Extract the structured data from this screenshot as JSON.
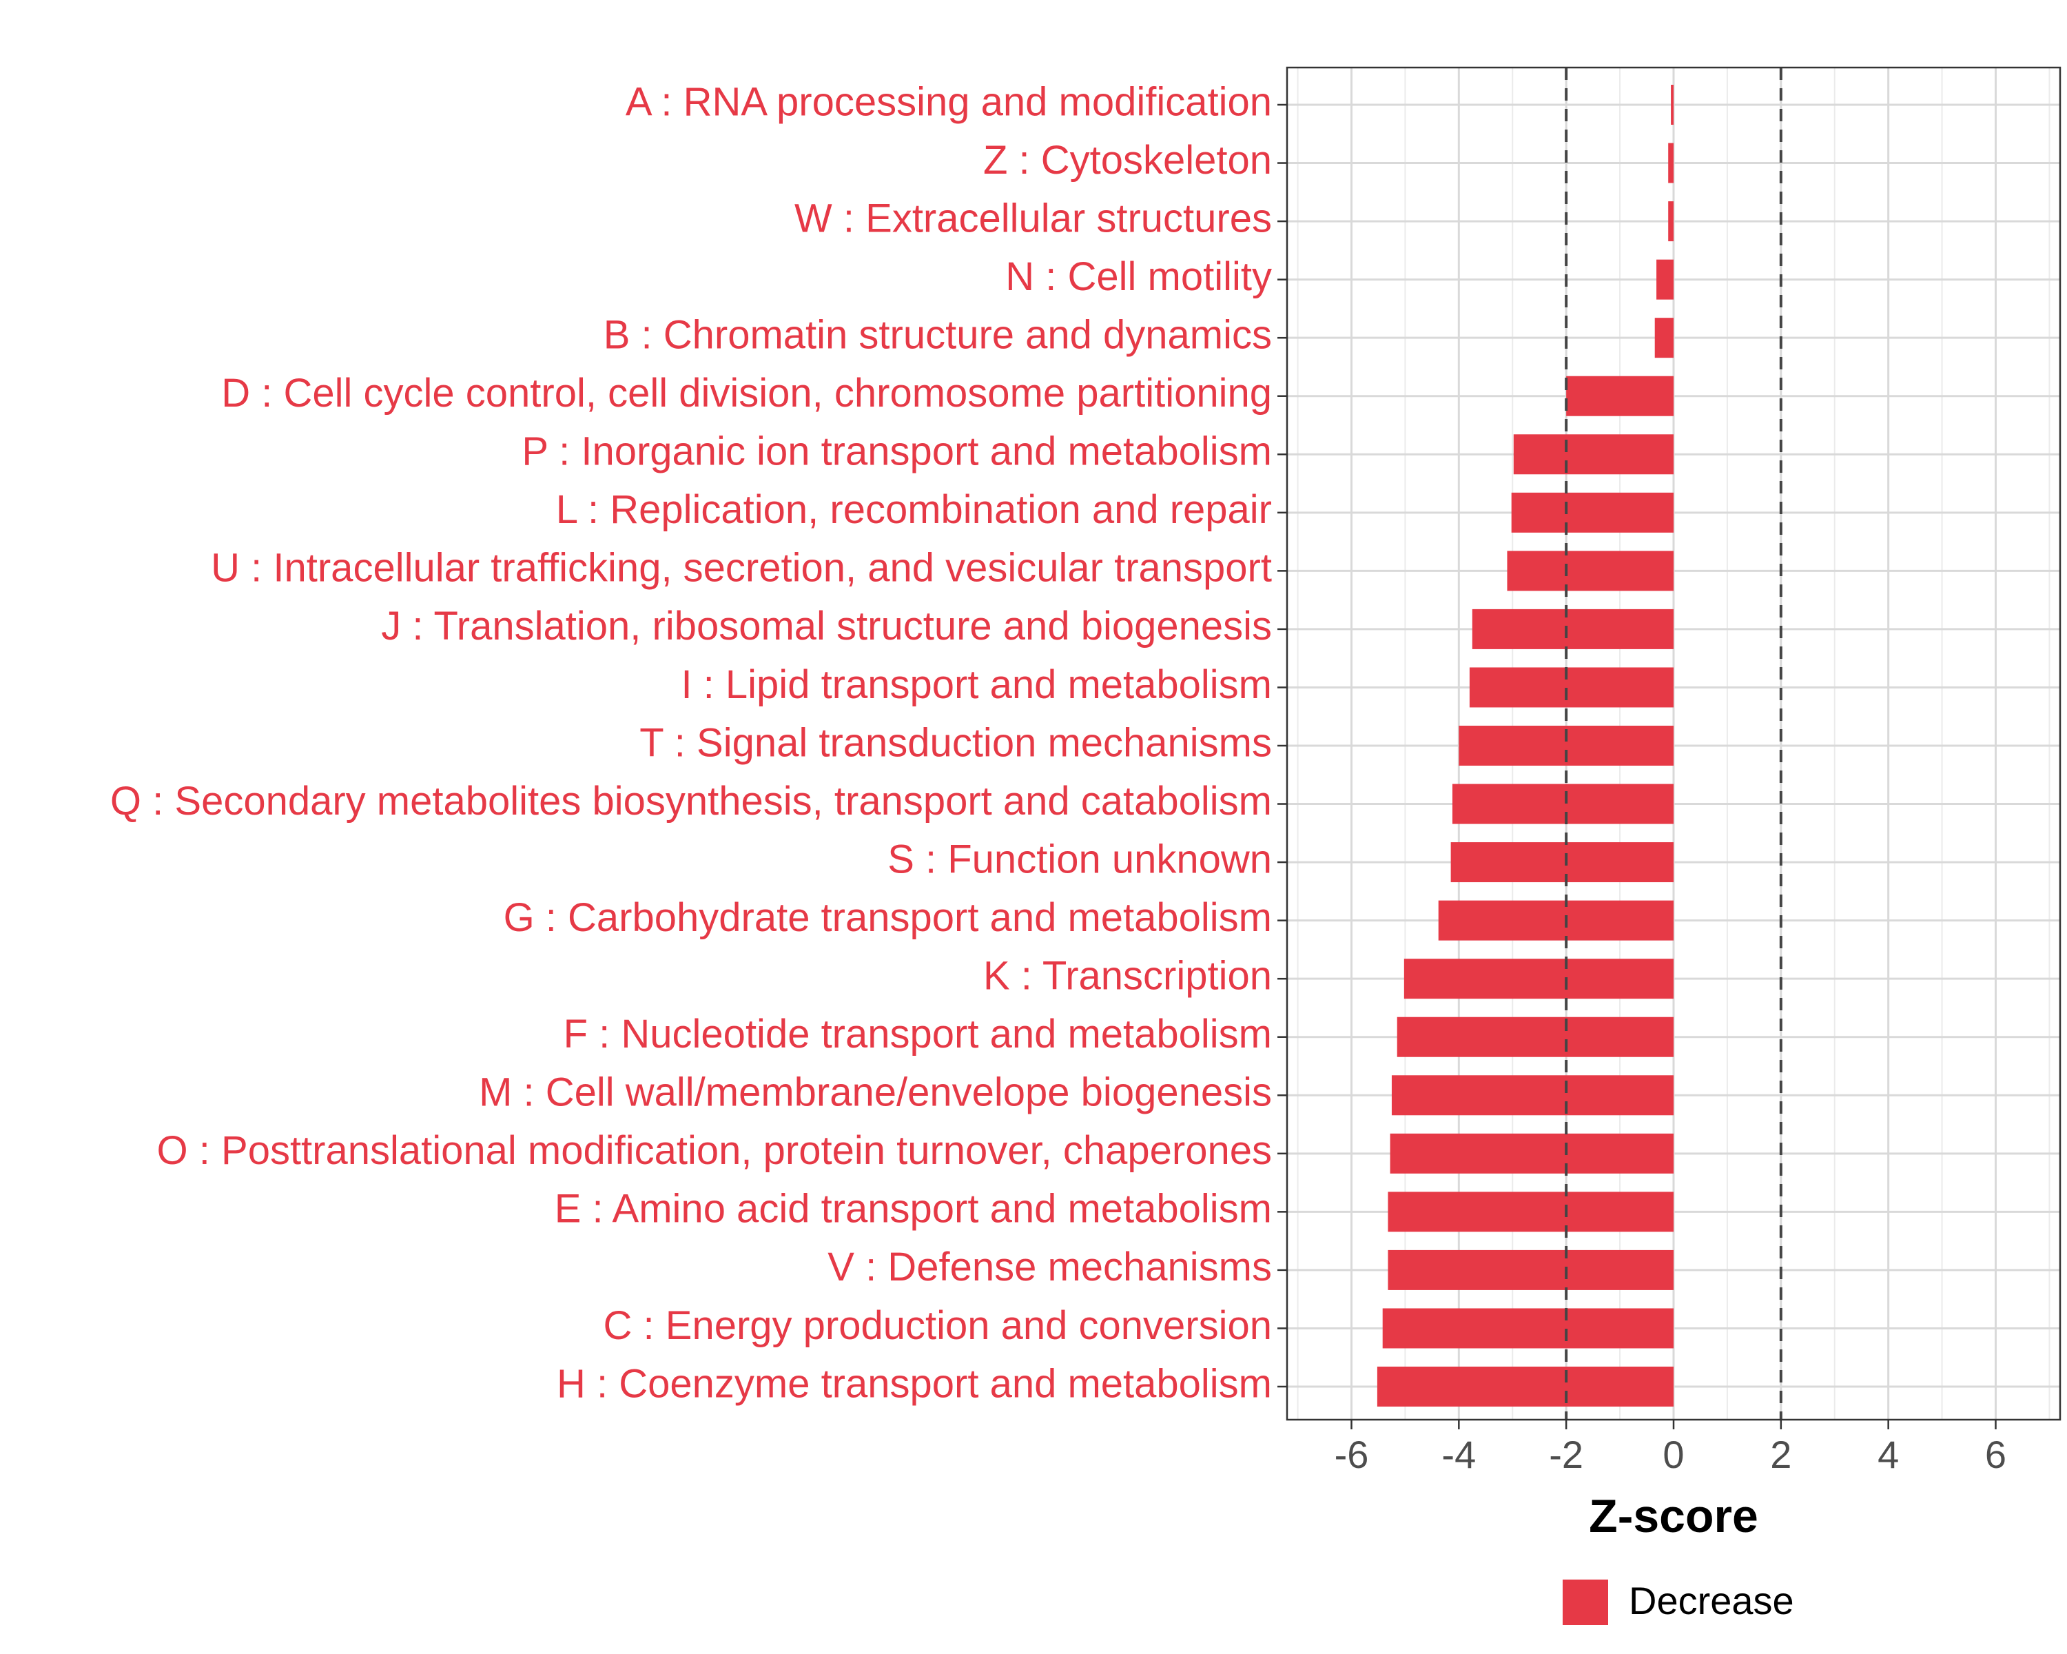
{
  "chart_data": {
    "type": "bar",
    "orientation": "horizontal",
    "categories": [
      "A : RNA processing and modification",
      "Z : Cytoskeleton",
      "W : Extracellular structures",
      "N : Cell motility",
      "B : Chromatin structure and dynamics",
      "D : Cell cycle control, cell division, chromosome partitioning",
      "P : Inorganic ion transport and metabolism",
      "L : Replication, recombination and repair",
      "U : Intracellular trafficking, secretion, and vesicular transport",
      "J : Translation, ribosomal structure and biogenesis",
      "I : Lipid transport and metabolism",
      "T : Signal transduction mechanisms",
      "Q : Secondary metabolites biosynthesis, transport and catabolism",
      "S : Function unknown",
      "G : Carbohydrate transport and metabolism",
      "K : Transcription",
      "F : Nucleotide transport and metabolism",
      "M : Cell wall/membrane/envelope biogenesis",
      "O : Posttranslational modification, protein turnover, chaperones",
      "E : Amino acid transport and metabolism",
      "V : Defense mechanisms",
      "C : Energy production and conversion",
      "H : Coenzyme transport and metabolism"
    ],
    "values": [
      -0.05,
      -0.1,
      -0.1,
      -0.32,
      -0.35,
      -2.0,
      -2.98,
      -3.02,
      -3.1,
      -3.75,
      -3.8,
      -4.0,
      -4.12,
      -4.15,
      -4.38,
      -5.02,
      -5.15,
      -5.25,
      -5.28,
      -5.32,
      -5.32,
      -5.42,
      -5.52
    ],
    "xlabel": "Z-score",
    "ylabel": "",
    "xlim": [
      -7.2,
      7.2
    ],
    "xticks": [
      -6,
      -4,
      -2,
      0,
      2,
      4,
      6
    ],
    "xtick_labels": [
      "-6",
      "-4",
      "-2",
      "0",
      "2",
      "4",
      "6"
    ],
    "reference_lines": [
      -2,
      2
    ],
    "legend": [
      {
        "label": "Decrease",
        "color": "#E63946"
      }
    ],
    "legend_position": "bottom",
    "grid": true,
    "bar_color": "#E63946",
    "label_color": "#E63946"
  }
}
